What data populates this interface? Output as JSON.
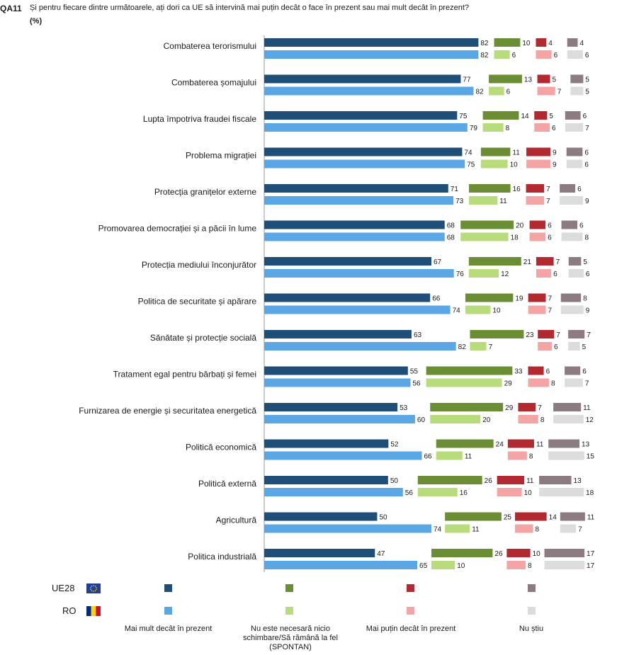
{
  "header": {
    "code": "QA11",
    "question": "Și pentru fiecare dintre următoarele, ați dori ca UE să intervină mai puțin decât o face în prezent sau mai mult decât în prezent?",
    "unit": "(%)"
  },
  "legend": {
    "groups": [
      {
        "label": "UE28",
        "flag": "eu-flag-icon"
      },
      {
        "label": "RO",
        "flag": "ro-flag-icon"
      }
    ],
    "items": [
      {
        "label": "Mai mult decât în prezent"
      },
      {
        "label": "Nu este necesară nicio schimbare/Să rămână la fel (SPONTAN)"
      },
      {
        "label": "Mai puțin decât în prezent"
      },
      {
        "label": "Nu știu"
      }
    ]
  },
  "colors": {
    "UE28": [
      "#1f4e79",
      "#6b8e35",
      "#b22a30",
      "#8c7b80"
    ],
    "RO": [
      "#5ba7e6",
      "#b8dc7c",
      "#f4a4a4",
      "#dcdcdc"
    ]
  },
  "chart_data": {
    "type": "bar",
    "orientation": "horizontal",
    "stacked": false,
    "grouped_segments": true,
    "series_groups": [
      "UE28",
      "RO"
    ],
    "segments": [
      "Mai mult decât în prezent",
      "Nu este necesară nicio schimbare/Să rămână la fel (SPONTAN)",
      "Mai puțin decât în prezent",
      "Nu știu"
    ],
    "categories": [
      {
        "name": "Combaterea terorismului",
        "UE28": [
          82,
          10,
          4,
          4
        ],
        "RO": [
          82,
          6,
          6,
          6
        ]
      },
      {
        "name": "Combaterea șomajului",
        "UE28": [
          77,
          13,
          5,
          5
        ],
        "RO": [
          82,
          6,
          7,
          5
        ]
      },
      {
        "name": "Lupta împotriva fraudei fiscale",
        "UE28": [
          75,
          14,
          5,
          6
        ],
        "RO": [
          79,
          8,
          6,
          7
        ]
      },
      {
        "name": "Problema migrației",
        "UE28": [
          74,
          11,
          9,
          6
        ],
        "RO": [
          75,
          10,
          9,
          6
        ]
      },
      {
        "name": "Protecția granițelor externe",
        "UE28": [
          71,
          16,
          7,
          6
        ],
        "RO": [
          73,
          11,
          7,
          9
        ]
      },
      {
        "name": "Promovarea democrației și a păcii în lume",
        "UE28": [
          68,
          20,
          6,
          6
        ],
        "RO": [
          68,
          18,
          6,
          8
        ]
      },
      {
        "name": "Protecția mediului înconjurător",
        "UE28": [
          67,
          21,
          7,
          5
        ],
        "RO": [
          76,
          12,
          6,
          6
        ]
      },
      {
        "name": "Politica de securitate și apărare",
        "UE28": [
          66,
          19,
          7,
          8
        ],
        "RO": [
          74,
          10,
          7,
          9
        ]
      },
      {
        "name": "Sănătate și protecție socială",
        "UE28": [
          63,
          23,
          7,
          7
        ],
        "RO": [
          82,
          7,
          6,
          5
        ]
      },
      {
        "name": "Tratament egal pentru bărbați și femei",
        "UE28": [
          55,
          33,
          6,
          6
        ],
        "RO": [
          56,
          29,
          8,
          7
        ]
      },
      {
        "name": "Furnizarea de energie și securitatea energetică",
        "UE28": [
          53,
          29,
          7,
          11
        ],
        "RO": [
          60,
          20,
          8,
          12
        ]
      },
      {
        "name": "Politică economică",
        "UE28": [
          52,
          24,
          11,
          13
        ],
        "RO": [
          66,
          11,
          8,
          15
        ]
      },
      {
        "name": "Politică externă",
        "UE28": [
          50,
          26,
          11,
          13
        ],
        "RO": [
          56,
          16,
          10,
          18
        ]
      },
      {
        "name": "Agricultură",
        "UE28": [
          50,
          25,
          14,
          11
        ],
        "RO": [
          74,
          11,
          8,
          7
        ]
      },
      {
        "name": "Politica industrială",
        "UE28": [
          47,
          26,
          10,
          17
        ],
        "RO": [
          65,
          10,
          8,
          17
        ]
      }
    ]
  }
}
